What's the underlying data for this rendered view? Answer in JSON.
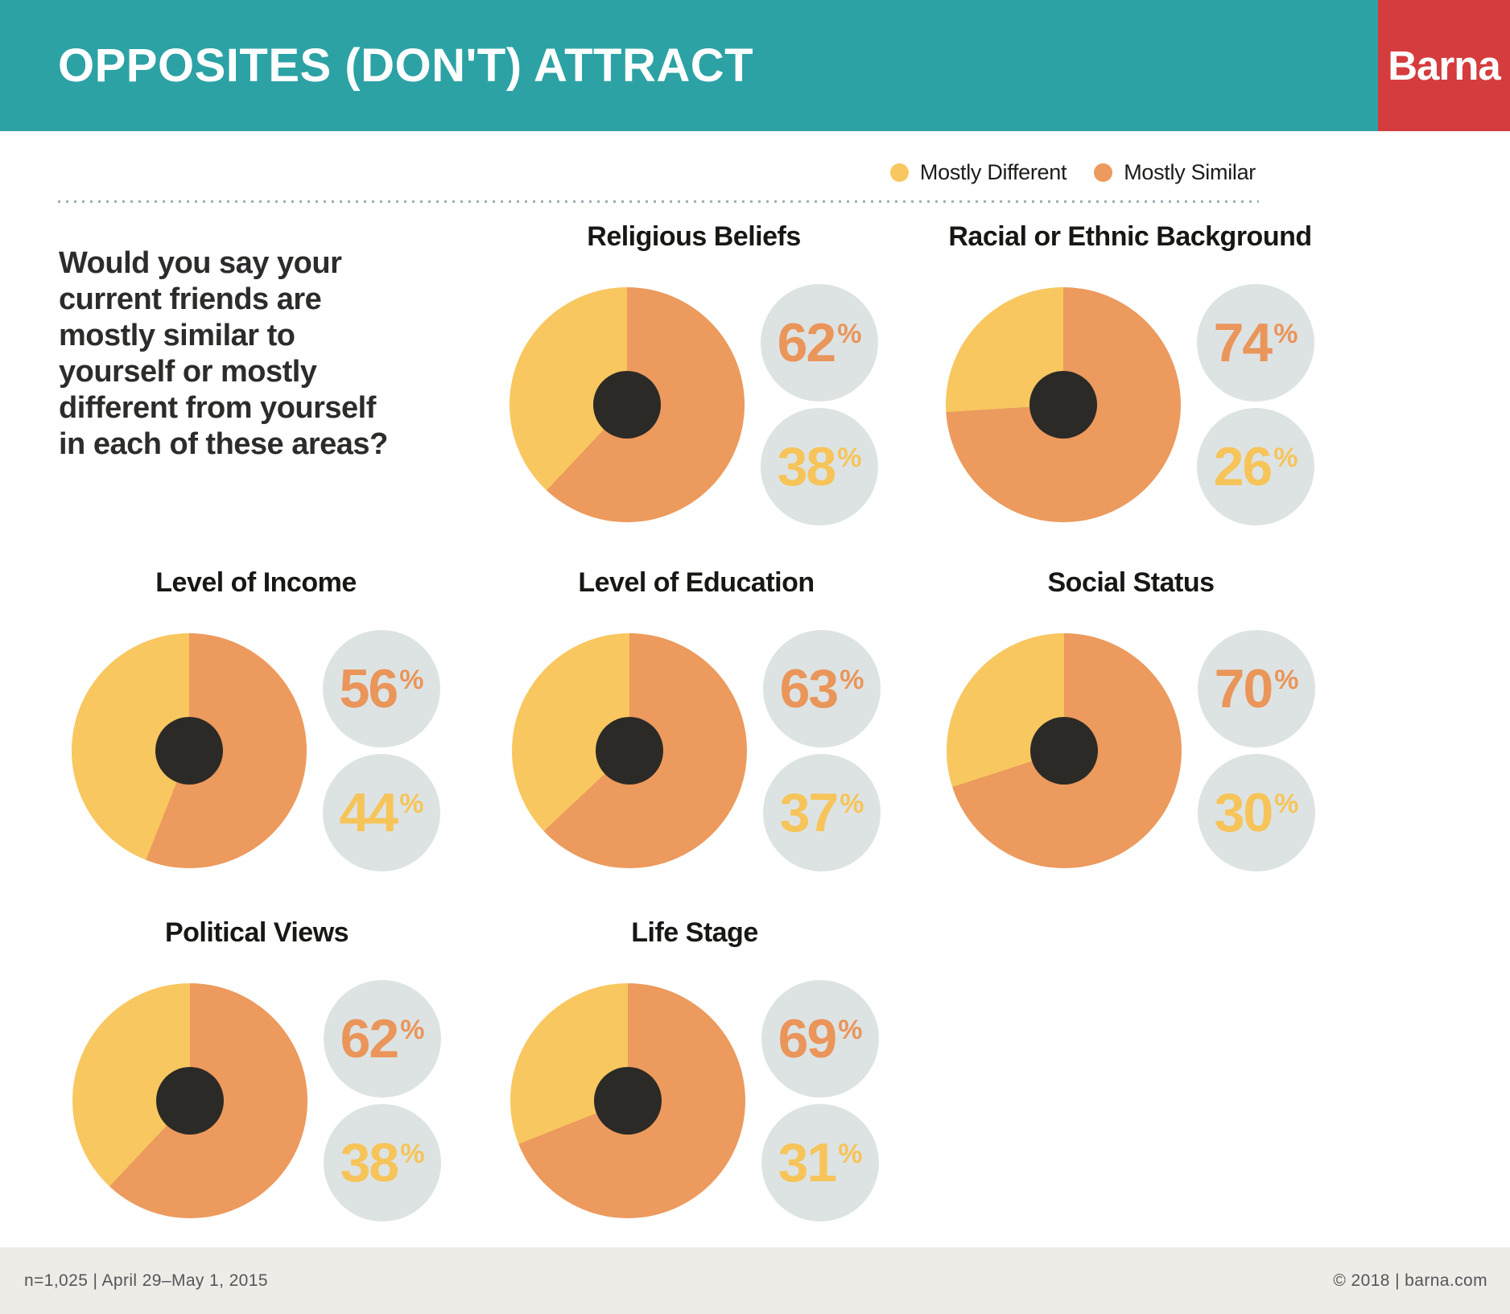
{
  "header": {
    "title": "OPPOSITES (DON'T) ATTRACT",
    "brand": "Barna",
    "teal": "#2CA2A5",
    "red": "#D53C3E"
  },
  "legend": {
    "items": [
      {
        "label": "Mostly Different",
        "color": "#F8C75F"
      },
      {
        "label": "Mostly Similar",
        "color": "#EC9A5D"
      }
    ]
  },
  "question": "Would you say your\ncurrent friends are\nmostly similar to\nyourself or mostly\ndifferent from yourself\nin each of these areas?",
  "palette": {
    "similar_slice": "#EC9A5D",
    "different_slice": "#F8C75F",
    "similar_text": "#EA955A",
    "different_text": "#F6C459",
    "badge_bg": "#DDE3E3",
    "donut_center": "#2B2A27"
  },
  "chart_data": [
    {
      "type": "pie",
      "title": "Religious Beliefs",
      "unit": "%",
      "slices": [
        {
          "label": "Mostly Similar",
          "value": 62
        },
        {
          "label": "Mostly Different",
          "value": 38
        }
      ]
    },
    {
      "type": "pie",
      "title": "Racial or Ethnic Background",
      "unit": "%",
      "slices": [
        {
          "label": "Mostly Similar",
          "value": 74
        },
        {
          "label": "Mostly Different",
          "value": 26
        }
      ]
    },
    {
      "type": "pie",
      "title": "Level of Income",
      "unit": "%",
      "slices": [
        {
          "label": "Mostly Similar",
          "value": 56
        },
        {
          "label": "Mostly Different",
          "value": 44
        }
      ]
    },
    {
      "type": "pie",
      "title": "Level of Education",
      "unit": "%",
      "slices": [
        {
          "label": "Mostly Similar",
          "value": 63
        },
        {
          "label": "Mostly Different",
          "value": 37
        }
      ]
    },
    {
      "type": "pie",
      "title": "Social Status",
      "unit": "%",
      "slices": [
        {
          "label": "Mostly Similar",
          "value": 70
        },
        {
          "label": "Mostly Different",
          "value": 30
        }
      ]
    },
    {
      "type": "pie",
      "title": "Political Views",
      "unit": "%",
      "slices": [
        {
          "label": "Mostly Similar",
          "value": 62
        },
        {
          "label": "Mostly Different",
          "value": 38
        }
      ]
    },
    {
      "type": "pie",
      "title": "Life Stage",
      "unit": "%",
      "slices": [
        {
          "label": "Mostly Similar",
          "value": 69
        },
        {
          "label": "Mostly Different",
          "value": 31
        }
      ]
    }
  ],
  "footer": {
    "left": "n=1,025 | April 29–May 1, 2015",
    "right": "© 2018 | barna.com"
  }
}
